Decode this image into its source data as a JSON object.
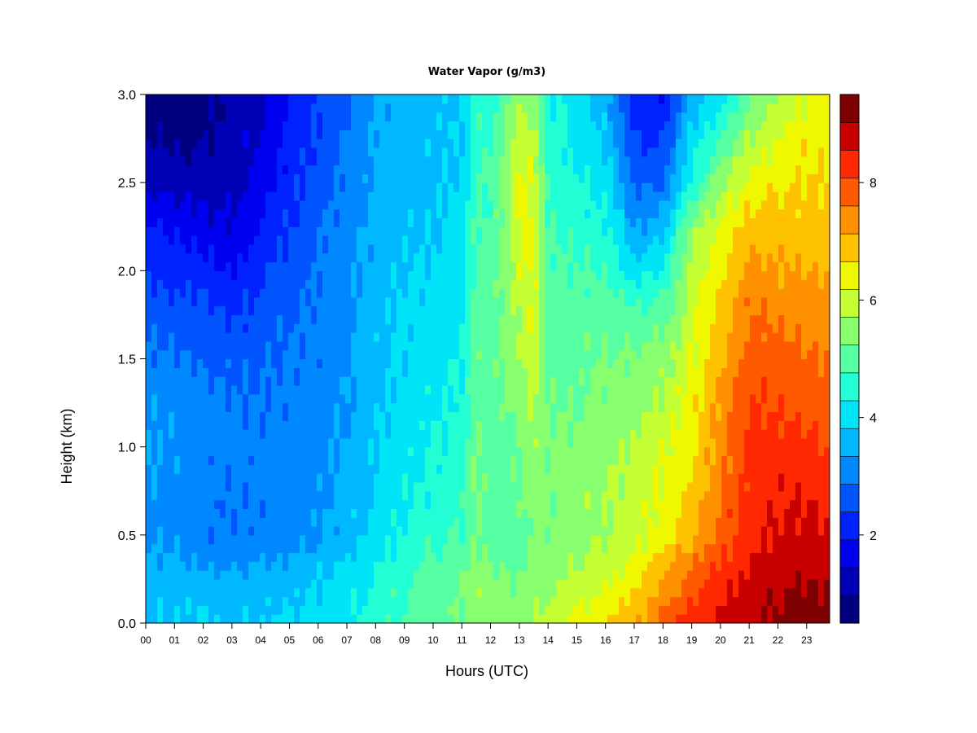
{
  "chart_data": {
    "type": "heatmap",
    "title": "Water Vapor (g/m3)",
    "xlabel": "Hours (UTC)",
    "ylabel": "Height (km)",
    "x_ticks": [
      "00",
      "01",
      "02",
      "03",
      "04",
      "05",
      "06",
      "07",
      "08",
      "09",
      "10",
      "11",
      "12",
      "13",
      "14",
      "15",
      "16",
      "17",
      "18",
      "19",
      "20",
      "21",
      "22",
      "23"
    ],
    "xlim": [
      0,
      23.8
    ],
    "y_ticks": [
      "0.0",
      "0.5",
      "1.0",
      "1.5",
      "2.0",
      "2.5",
      "3.0"
    ],
    "ylim": [
      0,
      3.0
    ],
    "heights_km": [
      0.05,
      0.25,
      0.5,
      0.75,
      1.0,
      1.25,
      1.5,
      1.75,
      2.0,
      2.25,
      2.5,
      2.75,
      2.95
    ],
    "hours": [
      0,
      1,
      2,
      3,
      4,
      5,
      6,
      7,
      8,
      9,
      10,
      11,
      11.5,
      12,
      13,
      13.5,
      14,
      15,
      16,
      17,
      18,
      19,
      20,
      21,
      22,
      23,
      23.8
    ],
    "values": [
      [
        3.8,
        3.8,
        3.8,
        3.7,
        3.8,
        3.9,
        4.0,
        4.2,
        4.5,
        4.8,
        5.0,
        5.3,
        5.6,
        5.5,
        5.4,
        5.6,
        5.9,
        6.3,
        6.6,
        7.0,
        7.6,
        8.3,
        8.6,
        8.9,
        9.1,
        9.3,
        9.2
      ],
      [
        3.6,
        3.6,
        3.5,
        3.4,
        3.5,
        3.6,
        3.8,
        4.0,
        4.4,
        4.7,
        5.0,
        5.2,
        5.6,
        5.3,
        5.2,
        5.4,
        5.5,
        5.8,
        6.1,
        6.5,
        7.2,
        7.8,
        8.3,
        8.7,
        8.9,
        9.0,
        9.0
      ],
      [
        3.2,
        3.2,
        3.0,
        2.9,
        3.0,
        3.1,
        3.3,
        3.6,
        4.0,
        4.4,
        4.6,
        4.8,
        5.3,
        5.0,
        5.0,
        5.4,
        5.3,
        5.5,
        5.7,
        5.9,
        6.5,
        7.0,
        7.8,
        8.4,
        8.6,
        8.7,
        8.6
      ],
      [
        3.3,
        3.2,
        3.0,
        2.9,
        3.0,
        3.1,
        3.2,
        3.5,
        3.9,
        4.2,
        4.4,
        4.6,
        5.4,
        5.0,
        5.2,
        5.5,
        5.3,
        5.5,
        5.7,
        5.9,
        6.3,
        6.8,
        7.6,
        8.3,
        8.5,
        8.5,
        8.3
      ],
      [
        3.4,
        3.3,
        3.1,
        3.0,
        3.0,
        3.1,
        3.2,
        3.4,
        3.8,
        4.1,
        4.3,
        4.5,
        5.3,
        5.0,
        5.2,
        5.6,
        5.3,
        5.4,
        5.6,
        5.8,
        6.1,
        6.6,
        7.4,
        8.2,
        8.3,
        8.2,
        8.0
      ],
      [
        3.3,
        3.2,
        3.0,
        2.9,
        2.9,
        3.0,
        3.1,
        3.3,
        3.7,
        4.0,
        4.2,
        4.4,
        5.2,
        5.0,
        5.4,
        5.8,
        5.2,
        5.2,
        5.4,
        5.5,
        5.8,
        6.4,
        7.2,
        8.1,
        8.0,
        7.9,
        7.8
      ],
      [
        3.0,
        2.9,
        2.8,
        2.7,
        2.8,
        2.9,
        3.0,
        3.3,
        3.7,
        3.9,
        4.1,
        4.3,
        5.1,
        5.0,
        5.6,
        6.0,
        5.1,
        5.1,
        5.3,
        5.3,
        5.5,
        6.2,
        7.0,
        7.9,
        7.8,
        7.6,
        7.6
      ],
      [
        2.7,
        2.6,
        2.5,
        2.3,
        2.6,
        2.8,
        3.0,
        3.2,
        3.7,
        3.9,
        4.0,
        4.2,
        5.0,
        4.9,
        5.8,
        6.2,
        5.0,
        5.0,
        5.1,
        4.9,
        5.0,
        6.0,
        6.8,
        7.7,
        7.5,
        7.4,
        7.4
      ],
      [
        2.4,
        2.2,
        2.2,
        1.9,
        2.3,
        2.6,
        2.9,
        3.2,
        3.6,
        3.8,
        3.9,
        4.1,
        4.9,
        4.9,
        6.1,
        6.3,
        4.9,
        4.8,
        4.8,
        4.0,
        4.4,
        5.8,
        6.6,
        7.3,
        7.2,
        7.1,
        7.1
      ],
      [
        2.0,
        1.8,
        1.6,
        1.5,
        1.9,
        2.4,
        2.8,
        3.1,
        3.5,
        3.7,
        3.8,
        4.0,
        4.9,
        4.8,
        6.2,
        6.3,
        4.8,
        4.6,
        4.4,
        3.3,
        3.6,
        5.5,
        6.2,
        6.9,
        6.9,
        6.8,
        6.9
      ],
      [
        1.4,
        1.2,
        1.2,
        1.3,
        1.6,
        2.2,
        2.6,
        3.0,
        3.5,
        3.6,
        3.7,
        3.9,
        4.8,
        4.8,
        6.2,
        6.2,
        4.6,
        4.4,
        4.1,
        2.8,
        2.8,
        4.4,
        5.6,
        6.3,
        6.6,
        6.7,
        6.7
      ],
      [
        1.0,
        0.9,
        0.9,
        1.2,
        1.5,
        2.0,
        2.5,
        2.9,
        3.4,
        3.6,
        3.7,
        3.8,
        4.7,
        4.7,
        5.9,
        5.9,
        4.5,
        4.2,
        3.8,
        2.4,
        2.3,
        4.0,
        4.8,
        5.7,
        6.2,
        6.5,
        6.6
      ],
      [
        0.8,
        0.7,
        0.8,
        1.1,
        1.4,
        1.9,
        2.4,
        2.8,
        3.4,
        3.6,
        3.7,
        3.8,
        4.6,
        4.6,
        5.6,
        5.6,
        4.4,
        4.1,
        3.6,
        2.1,
        2.0,
        3.6,
        4.2,
        5.1,
        5.7,
        6.2,
        6.4
      ]
    ],
    "colorbar": {
      "range": [
        0.5,
        9.5
      ],
      "levels": 18,
      "tick_labels": [
        "2",
        "4",
        "6",
        "8"
      ],
      "tick_values": [
        2,
        4,
        6,
        8
      ],
      "colors": [
        "#00007f",
        "#0000b4",
        "#0000f0",
        "#0022ff",
        "#0055ff",
        "#0088ff",
        "#00b8ff",
        "#00e4f8",
        "#22ffd5",
        "#55ffa2",
        "#88ff6f",
        "#c4ff33",
        "#f0f800",
        "#ffc200",
        "#ff9000",
        "#ff5a00",
        "#ff2800",
        "#c80000",
        "#7f0000"
      ]
    },
    "grid": false,
    "legend": "colorbar-right"
  }
}
